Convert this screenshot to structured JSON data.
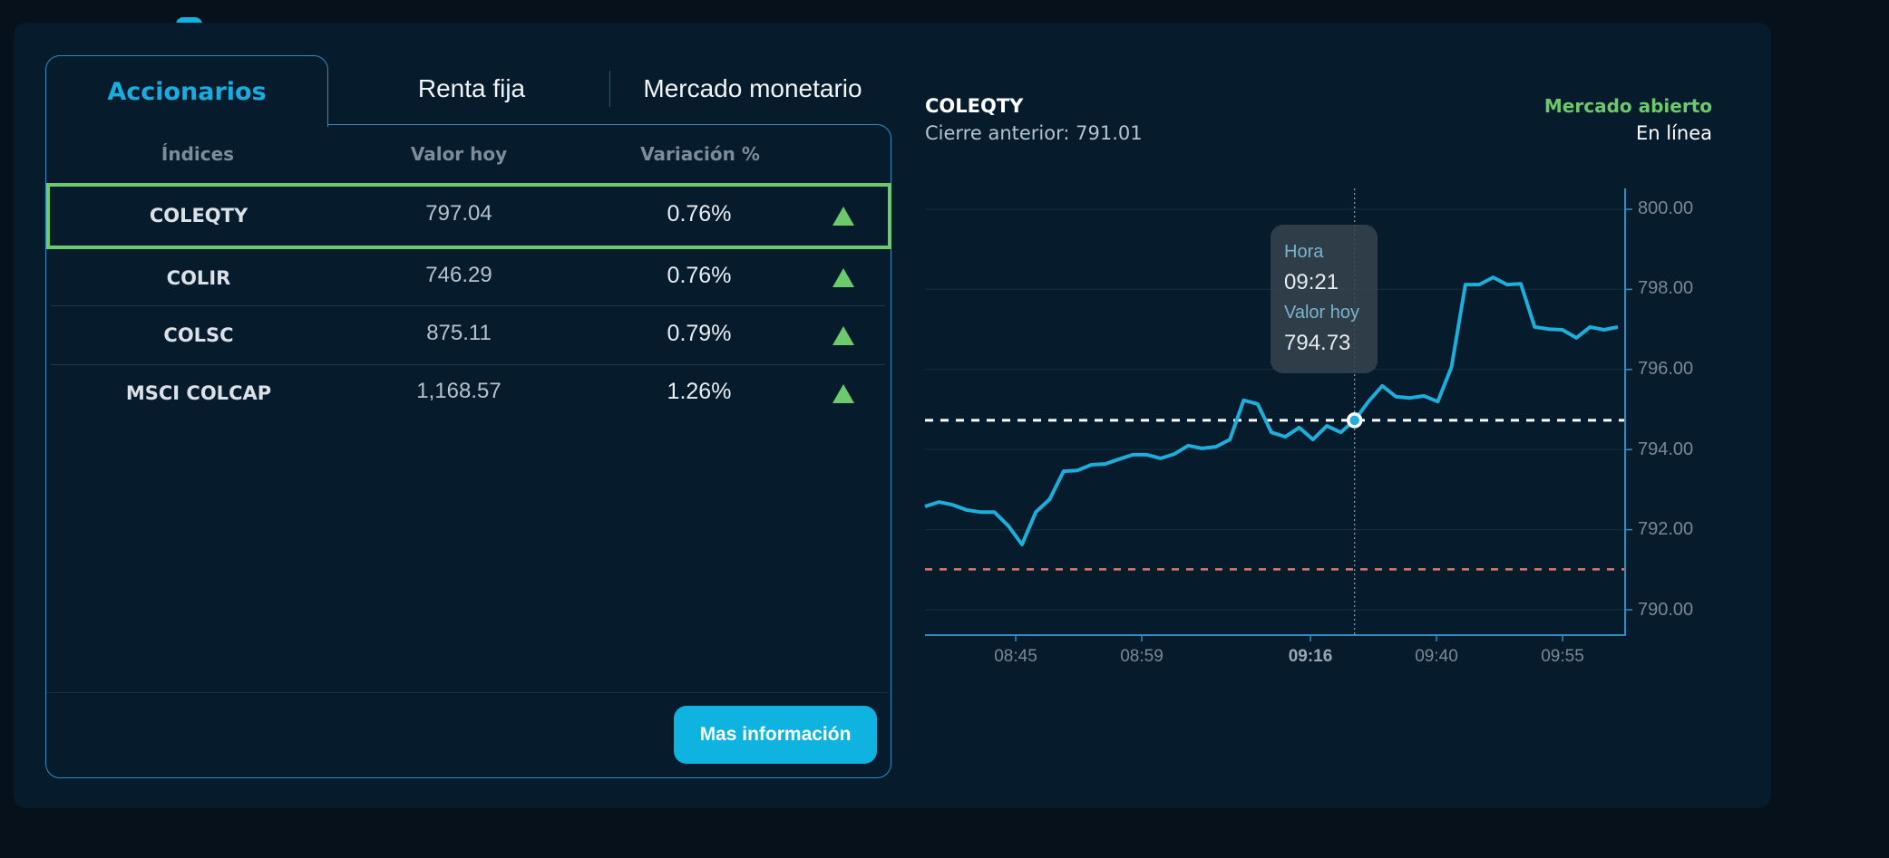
{
  "tabs": [
    {
      "label": "Accionarios",
      "active": true
    },
    {
      "label": "Renta fija",
      "active": false
    },
    {
      "label": "Mercado monetario",
      "active": false
    }
  ],
  "table": {
    "headers": [
      "Índices",
      "Valor hoy",
      "Variación %"
    ],
    "rows": [
      {
        "name": "COLEQTY",
        "value": "797.04",
        "change": "0.76%",
        "trend": "up",
        "selected": true
      },
      {
        "name": "COLIR",
        "value": "746.29",
        "change": "0.76%",
        "trend": "up",
        "selected": false
      },
      {
        "name": "COLSC",
        "value": "875.11",
        "change": "0.79%",
        "trend": "up",
        "selected": false
      },
      {
        "name": "MSCI COLCAP",
        "value": "1,168.57",
        "change": "1.26%",
        "trend": "up",
        "selected": false
      }
    ]
  },
  "more_button": "Mas información",
  "chart_header": {
    "title": "COLEQTY",
    "previous_close_label": "Cierre anterior: 791.01",
    "market_status": "Mercado abierto",
    "connection": "En línea"
  },
  "tooltip": {
    "time_label": "Hora",
    "time_value": "09:21",
    "value_label": "Valor hoy",
    "value_value": "794.73"
  },
  "colors": {
    "accent": "#12b3e0",
    "up": "#6cc96c",
    "line": "#1eaedc",
    "previous_close_line": "#e0786a",
    "hover_line": "#ffffff",
    "card_bg": "#061c2c",
    "page_bg": "#06111b"
  },
  "chart_data": {
    "type": "line",
    "title": "COLEQTY",
    "xlabel": "",
    "ylabel": "",
    "ylim": [
      789.4,
      800.7
    ],
    "y_ticks": [
      "800.00",
      "798.00",
      "796.00",
      "794.00",
      "792.00",
      "790.00"
    ],
    "x_ticks": [
      {
        "label": "08:45",
        "bold": false
      },
      {
        "label": "08:59",
        "bold": false
      },
      {
        "label": "09:16",
        "bold": true
      },
      {
        "label": "09:40",
        "bold": false
      },
      {
        "label": "09:55",
        "bold": false
      }
    ],
    "reference_lines": [
      {
        "name": "Cierre anterior",
        "value": 791.01,
        "style": "dashed",
        "color": "#e0786a"
      },
      {
        "name": "hover",
        "value": 794.73,
        "style": "dashed",
        "color": "#ffffff"
      }
    ],
    "highlight": {
      "time": "09:21",
      "value": 794.73,
      "index": 31
    },
    "series": [
      {
        "name": "COLEQTY",
        "values": [
          792.58,
          792.69,
          792.62,
          792.49,
          792.44,
          792.44,
          792.1,
          791.63,
          792.44,
          792.76,
          793.46,
          793.48,
          793.62,
          793.64,
          793.76,
          793.87,
          793.87,
          793.78,
          793.89,
          794.1,
          794.03,
          794.07,
          794.25,
          795.23,
          795.14,
          794.43,
          794.32,
          794.55,
          794.25,
          794.59,
          794.43,
          794.73,
          795.2,
          795.59,
          795.32,
          795.29,
          795.34,
          795.2,
          796.06,
          798.12,
          798.12,
          798.3,
          798.12,
          798.14,
          797.06,
          797.01,
          796.99,
          796.79,
          797.06,
          796.99,
          797.06
        ]
      }
    ]
  }
}
